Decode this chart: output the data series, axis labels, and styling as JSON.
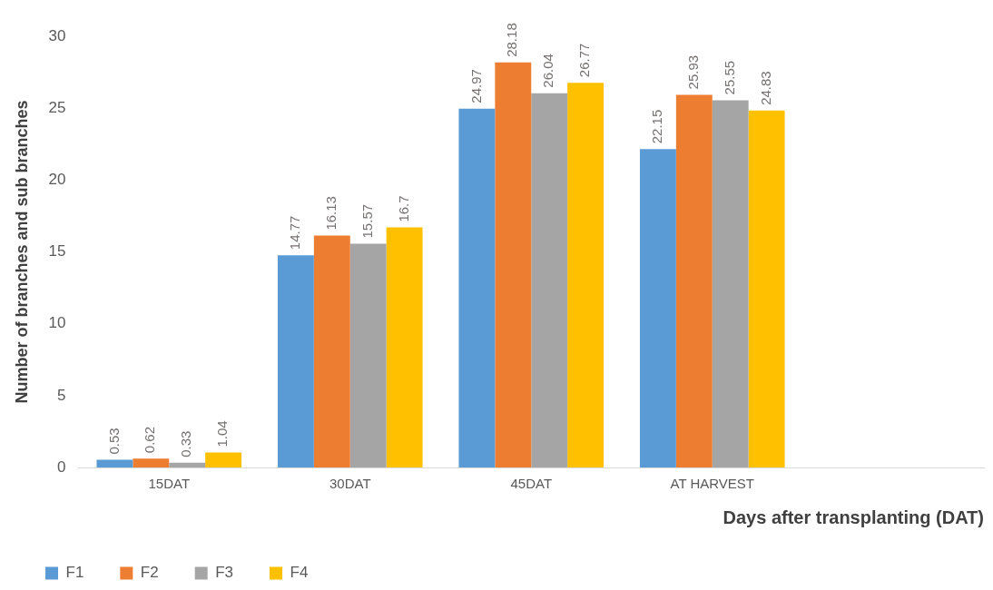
{
  "chart_data": {
    "type": "bar",
    "xlabel": "Days after transplanting (DAT)",
    "ylabel": "Number of branches and sub branches",
    "categories": [
      "15DAT",
      "30DAT",
      "45DAT",
      "AT HARVEST",
      null
    ],
    "series": [
      {
        "name": "F1",
        "color": "#5b9bd5",
        "values": [
          0.53,
          14.77,
          24.97,
          22.15,
          null
        ]
      },
      {
        "name": "F2",
        "color": "#ed7d31",
        "values": [
          0.62,
          16.13,
          28.18,
          25.93,
          null
        ]
      },
      {
        "name": "F3",
        "color": "#a5a5a5",
        "values": [
          0.33,
          15.57,
          26.04,
          25.55,
          null
        ]
      },
      {
        "name": "F4",
        "color": "#ffc000",
        "values": [
          1.04,
          16.7,
          26.77,
          24.83,
          null
        ]
      }
    ],
    "ylim": [
      0,
      30
    ],
    "yticks": [
      0,
      5,
      10,
      15,
      20,
      25,
      30
    ],
    "grid": false,
    "legend": "bottom left",
    "data_labels": true
  }
}
